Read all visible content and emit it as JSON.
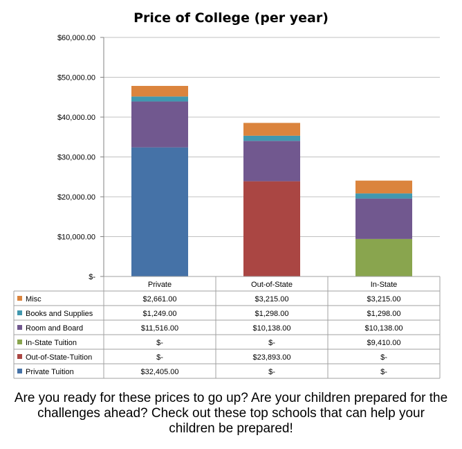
{
  "chart_data": {
    "type": "bar",
    "stacked": true,
    "title": "Price of College (per year)",
    "categories": [
      "Private",
      "Out-of-State",
      "In-State"
    ],
    "ylim": [
      0,
      60000
    ],
    "yticks": [
      0,
      10000,
      20000,
      30000,
      40000,
      50000,
      60000
    ],
    "ytick_labels": [
      "$-",
      "$10,000.00",
      "$20,000.00",
      "$30,000.00",
      "$40,000.00",
      "$50,000.00",
      "$60,000.00"
    ],
    "grid": true,
    "legend": "data-table",
    "series": [
      {
        "name": "Private Tuition",
        "color": "#4572A7",
        "values": [
          32405,
          0,
          0
        ],
        "labels": [
          "$32,405.00",
          "$-",
          "$-"
        ]
      },
      {
        "name": "Out-of-State-Tuition",
        "color": "#AA4643",
        "values": [
          0,
          23893,
          0
        ],
        "labels": [
          "$-",
          "$23,893.00",
          "$-"
        ]
      },
      {
        "name": "In-State Tuition",
        "color": "#89A54E",
        "values": [
          0,
          0,
          9410
        ],
        "labels": [
          "$-",
          "$-",
          "$9,410.00"
        ]
      },
      {
        "name": "Room and Board",
        "color": "#71588F",
        "values": [
          11516,
          10138,
          10138
        ],
        "labels": [
          "$11,516.00",
          "$10,138.00",
          "$10,138.00"
        ]
      },
      {
        "name": "Books and Supplies",
        "color": "#4198AF",
        "values": [
          1249,
          1298,
          1298
        ],
        "labels": [
          "$1,249.00",
          "$1,298.00",
          "$1,298.00"
        ]
      },
      {
        "name": "Misc",
        "color": "#DB843D",
        "values": [
          2661,
          3215,
          3215
        ],
        "labels": [
          "$2,661.00",
          "$3,215.00",
          "$3,215.00"
        ]
      }
    ]
  },
  "caption": "Are you ready for these prices to go up? Are your children prepared for the challenges ahead? Check out these top schools that can help your children be prepared!"
}
